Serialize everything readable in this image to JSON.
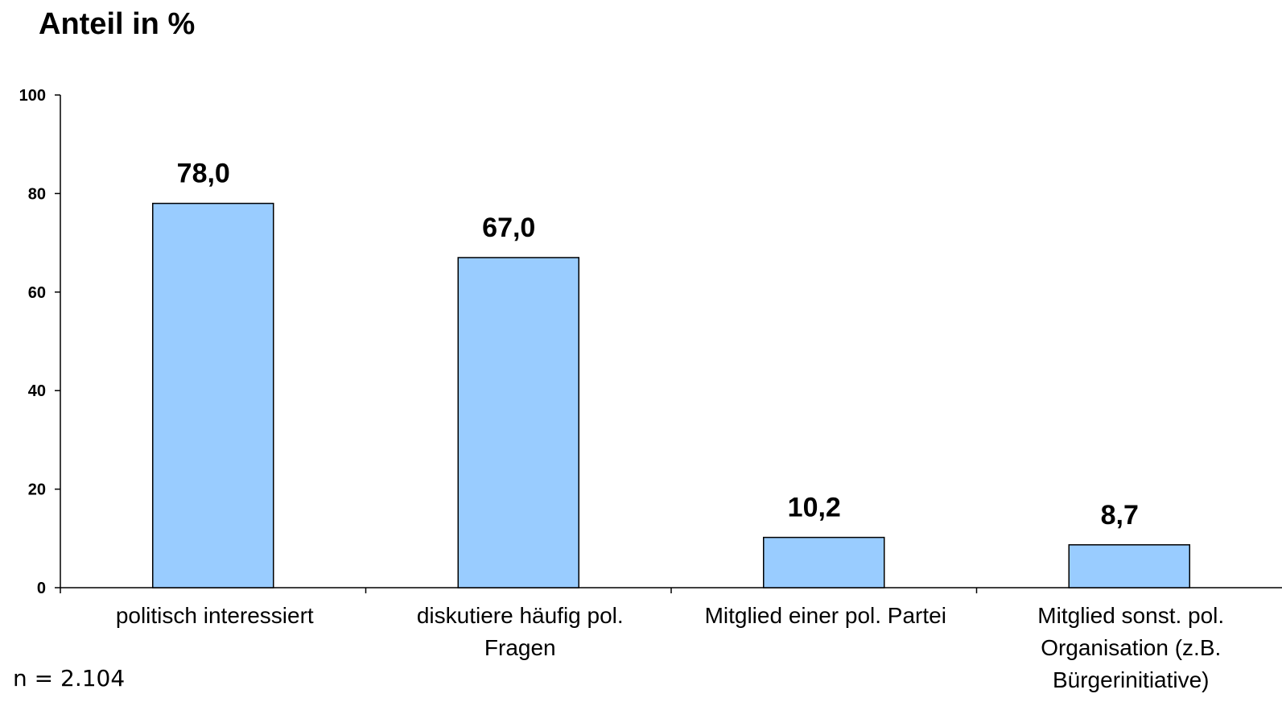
{
  "chart_data": {
    "type": "bar",
    "title": "Anteil in %",
    "categories": [
      "politisch interessiert",
      "diskutiere häufig pol. Fragen",
      "Mitglied einer pol. Partei",
      "Mitglied sonst. pol. Organisation (z.B. Bürgerinitiative)"
    ],
    "category_lines": [
      [
        "politisch interessiert"
      ],
      [
        "diskutiere häufig pol.",
        "Fragen"
      ],
      [
        "Mitglied einer pol. Partei"
      ],
      [
        "Mitglied sonst. pol.",
        "Organisation (z.B.",
        "Bürgerinitiative)"
      ]
    ],
    "values": [
      78.0,
      67.0,
      10.2,
      8.7
    ],
    "value_labels": [
      "78,0",
      "67,0",
      "10,2",
      "8,7"
    ],
    "ylim": [
      0,
      100
    ],
    "yticks": [
      0,
      20,
      40,
      60,
      80,
      100
    ],
    "xlabel": "",
    "ylabel": "",
    "grid": false,
    "legend": "none",
    "bar_color": "#99ccff",
    "bar_edge_color": "#000000"
  },
  "note": "n = 2.104"
}
